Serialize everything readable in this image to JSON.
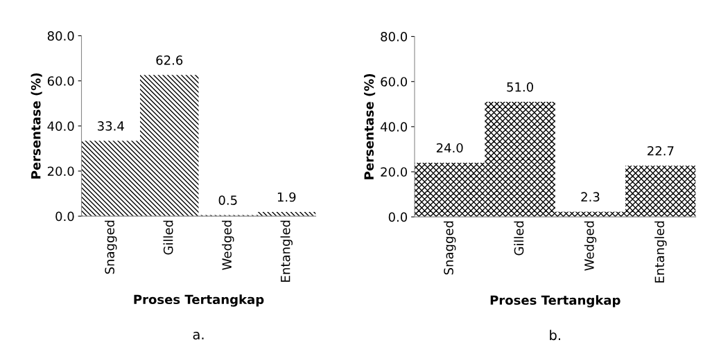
{
  "chart_data": [
    {
      "type": "bar",
      "categories": [
        "Snagged",
        "Gilled",
        "Wedged",
        "Entangled"
      ],
      "values": [
        33.4,
        62.6,
        0.5,
        1.9
      ],
      "value_labels": [
        "33.4",
        "62.6",
        "0.5",
        "1.9"
      ],
      "color": "#000000",
      "xlabel": "Proses Tertangkap",
      "ylabel": "Persentase (%)",
      "ylim": [
        0,
        80
      ],
      "yticks": [
        {
          "value": 0,
          "label": "0.0"
        },
        {
          "value": 20,
          "label": "20.0"
        },
        {
          "value": 40,
          "label": "40.0"
        },
        {
          "value": 60,
          "label": "60.0"
        },
        {
          "value": 80,
          "label": "80.0"
        }
      ],
      "grid": false,
      "legend": false,
      "annotations": [
        "a."
      ]
    },
    {
      "type": "bar",
      "categories": [
        "Snagged",
        "Gilled",
        "Wedged",
        "Entangled"
      ],
      "values": [
        24.0,
        51.0,
        2.3,
        22.7
      ],
      "value_labels": [
        "24.0",
        "51.0",
        "2.3",
        "22.7"
      ],
      "color": "#000000",
      "xlabel": "Proses Tertangkap",
      "ylabel": "Persentase (%)",
      "ylim": [
        0,
        80
      ],
      "yticks": [
        {
          "value": 0,
          "label": "0.0"
        },
        {
          "value": 20,
          "label": "20.0"
        },
        {
          "value": 40,
          "label": "40.0"
        },
        {
          "value": 60,
          "label": "60.0"
        },
        {
          "value": 80,
          "label": "80.0"
        }
      ],
      "grid": false,
      "legend": false,
      "annotations": [
        "b."
      ]
    }
  ]
}
